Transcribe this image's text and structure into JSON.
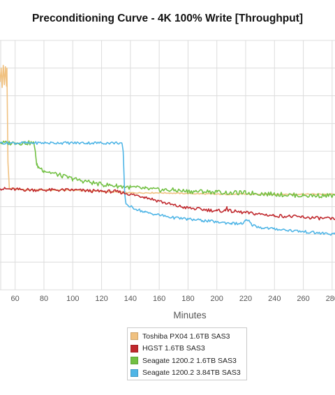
{
  "chart_data": {
    "type": "line",
    "title": "Preconditioning Curve - 4K 100% Write [Throughput]",
    "xlabel": "Minutes",
    "ylabel": "",
    "xlim": [
      49.5,
      282
    ],
    "ylim": [
      0,
      9
    ],
    "x_ticks": [
      60,
      80,
      100,
      120,
      140,
      160,
      180,
      200,
      220,
      240,
      260,
      280
    ],
    "grid": true,
    "legend_position": "bottom-center",
    "series": [
      {
        "name": "Toshiba PX04 1.6TB SAS3",
        "color": "#f0c180",
        "points": [
          [
            49.5,
            7.5
          ],
          [
            50.3,
            8.0
          ],
          [
            51,
            7.3
          ],
          [
            51.8,
            8.1
          ],
          [
            52.5,
            7.4
          ],
          [
            53.3,
            8.05
          ],
          [
            54,
            7.35
          ],
          [
            54.3,
            8.0
          ],
          [
            55,
            4.6
          ],
          [
            56,
            3.65
          ],
          [
            57,
            3.65
          ],
          [
            70,
            3.6
          ],
          [
            100,
            3.6
          ],
          [
            140,
            3.5
          ],
          [
            160,
            3.5
          ],
          [
            200,
            3.45
          ],
          [
            240,
            3.45
          ],
          [
            282,
            3.45
          ]
        ]
      },
      {
        "name": "HGST 1.6TB SAS3",
        "color": "#c0282d",
        "points": [
          [
            49.5,
            3.65
          ],
          [
            60,
            3.62
          ],
          [
            80,
            3.6
          ],
          [
            100,
            3.6
          ],
          [
            120,
            3.55
          ],
          [
            130,
            3.55
          ],
          [
            140,
            3.45
          ],
          [
            150,
            3.35
          ],
          [
            160,
            3.2
          ],
          [
            170,
            3.05
          ],
          [
            180,
            2.95
          ],
          [
            200,
            2.85
          ],
          [
            206,
            2.85
          ],
          [
            207,
            3.0
          ],
          [
            208,
            2.85
          ],
          [
            220,
            2.78
          ],
          [
            240,
            2.68
          ],
          [
            260,
            2.62
          ],
          [
            282,
            2.55
          ]
        ]
      },
      {
        "name": "Seagate 1200.2 1.6TB SAS3",
        "color": "#72c043",
        "points": [
          [
            49.5,
            5.3
          ],
          [
            60,
            5.3
          ],
          [
            73,
            5.3
          ],
          [
            74,
            5.0
          ],
          [
            75,
            4.5
          ],
          [
            76,
            4.45
          ],
          [
            80,
            4.3
          ],
          [
            90,
            4.15
          ],
          [
            100,
            4.0
          ],
          [
            110,
            3.9
          ],
          [
            120,
            3.8
          ],
          [
            130,
            3.75
          ],
          [
            140,
            3.7
          ],
          [
            150,
            3.65
          ],
          [
            160,
            3.6
          ],
          [
            170,
            3.6
          ],
          [
            180,
            3.55
          ],
          [
            190,
            3.55
          ],
          [
            200,
            3.52
          ],
          [
            210,
            3.5
          ],
          [
            220,
            3.5
          ],
          [
            240,
            3.45
          ],
          [
            260,
            3.4
          ],
          [
            282,
            3.4
          ]
        ]
      },
      {
        "name": "Seagate 1200.2 3.84TB SAS3",
        "color": "#4fb5e6",
        "points": [
          [
            49.5,
            5.3
          ],
          [
            70,
            5.3
          ],
          [
            90,
            5.3
          ],
          [
            110,
            5.3
          ],
          [
            134,
            5.3
          ],
          [
            135,
            5.0
          ],
          [
            136,
            3.5
          ],
          [
            137,
            3.1
          ],
          [
            140,
            3.0
          ],
          [
            150,
            2.8
          ],
          [
            160,
            2.7
          ],
          [
            170,
            2.6
          ],
          [
            180,
            2.55
          ],
          [
            190,
            2.5
          ],
          [
            200,
            2.45
          ],
          [
            210,
            2.4
          ],
          [
            218,
            2.38
          ],
          [
            220,
            2.5
          ],
          [
            222,
            2.5
          ],
          [
            224,
            2.35
          ],
          [
            230,
            2.25
          ],
          [
            240,
            2.2
          ],
          [
            260,
            2.1
          ],
          [
            270,
            2.05
          ],
          [
            282,
            2.0
          ]
        ]
      }
    ]
  }
}
